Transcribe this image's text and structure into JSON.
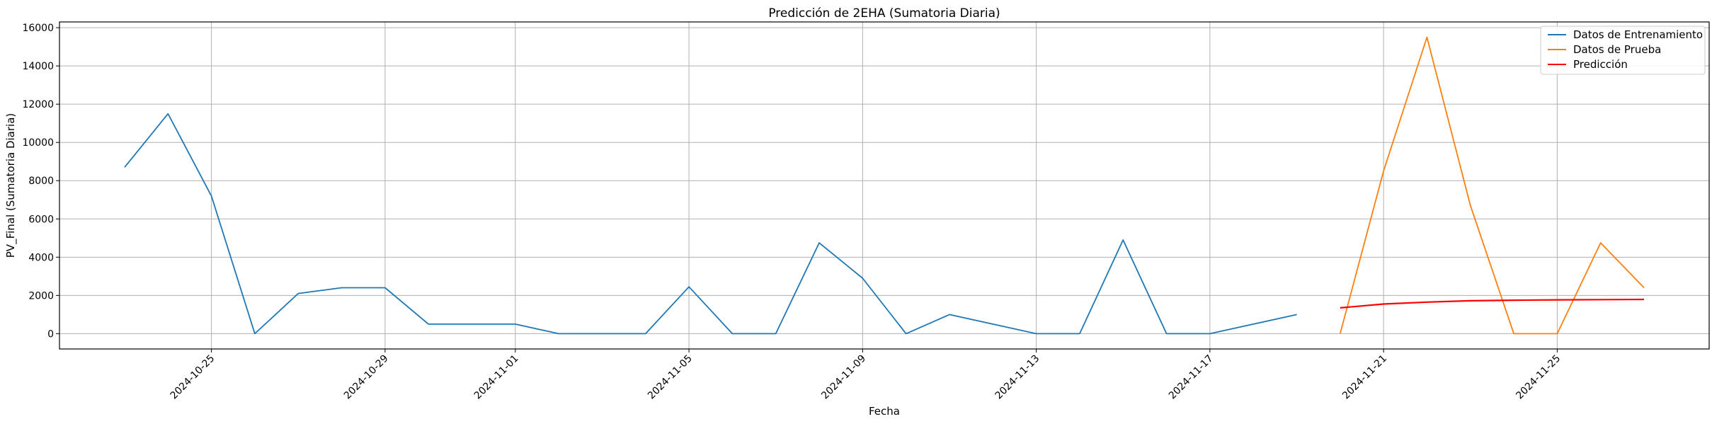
{
  "chart_data": {
    "type": "line",
    "title": "Predicción de 2EHA (Sumatoria Diaria)",
    "xlabel": "Fecha",
    "ylabel": "PV_Final (Sumatoria Diaria)",
    "x_range": [
      "2024-10-21 12:00",
      "2024-11-28 12:00"
    ],
    "ylim": [
      -800,
      16300
    ],
    "x_ticks": [
      "2024-10-25",
      "2024-10-29",
      "2024-11-01",
      "2024-11-05",
      "2024-11-09",
      "2024-11-13",
      "2024-11-17",
      "2024-11-21",
      "2024-11-25"
    ],
    "y_ticks": [
      0,
      2000,
      4000,
      6000,
      8000,
      10000,
      12000,
      14000,
      16000
    ],
    "grid": true,
    "legend_position": "top-right",
    "series": [
      {
        "name": "Datos de Entrenamiento",
        "color": "#1f77b4",
        "points": [
          [
            "2024-10-23",
            8700
          ],
          [
            "2024-10-24",
            11500
          ],
          [
            "2024-10-25",
            7200
          ],
          [
            "2024-10-26",
            0
          ],
          [
            "2024-10-27",
            2100
          ],
          [
            "2024-10-28",
            2400
          ],
          [
            "2024-10-29",
            2400
          ],
          [
            "2024-10-30",
            500
          ],
          [
            "2024-10-31",
            500
          ],
          [
            "2024-11-01",
            500
          ],
          [
            "2024-11-02",
            0
          ],
          [
            "2024-11-03",
            0
          ],
          [
            "2024-11-04",
            0
          ],
          [
            "2024-11-05",
            2450
          ],
          [
            "2024-11-06",
            0
          ],
          [
            "2024-11-07",
            0
          ],
          [
            "2024-11-08",
            4750
          ],
          [
            "2024-11-09",
            2900
          ],
          [
            "2024-11-10",
            0
          ],
          [
            "2024-11-11",
            1000
          ],
          [
            "2024-11-12",
            500
          ],
          [
            "2024-11-13",
            0
          ],
          [
            "2024-11-14",
            0
          ],
          [
            "2024-11-15",
            4900
          ],
          [
            "2024-11-16",
            0
          ],
          [
            "2024-11-17",
            0
          ],
          [
            "2024-11-18",
            500
          ],
          [
            "2024-11-19",
            1000
          ]
        ]
      },
      {
        "name": "Datos de Prueba",
        "color": "#ff7f0e",
        "points": [
          [
            "2024-11-20",
            0
          ],
          [
            "2024-11-21",
            8500
          ],
          [
            "2024-11-22",
            15500
          ],
          [
            "2024-11-23",
            6700
          ],
          [
            "2024-11-24",
            0
          ],
          [
            "2024-11-25",
            0
          ],
          [
            "2024-11-26",
            4750
          ],
          [
            "2024-11-27",
            2400
          ]
        ]
      },
      {
        "name": "Predicción",
        "color": "#ff0000",
        "points": [
          [
            "2024-11-20",
            1350
          ],
          [
            "2024-11-21",
            1550
          ],
          [
            "2024-11-22",
            1650
          ],
          [
            "2024-11-23",
            1720
          ],
          [
            "2024-11-24",
            1750
          ],
          [
            "2024-11-25",
            1770
          ],
          [
            "2024-11-26",
            1780
          ],
          [
            "2024-11-27",
            1790
          ]
        ]
      }
    ]
  }
}
